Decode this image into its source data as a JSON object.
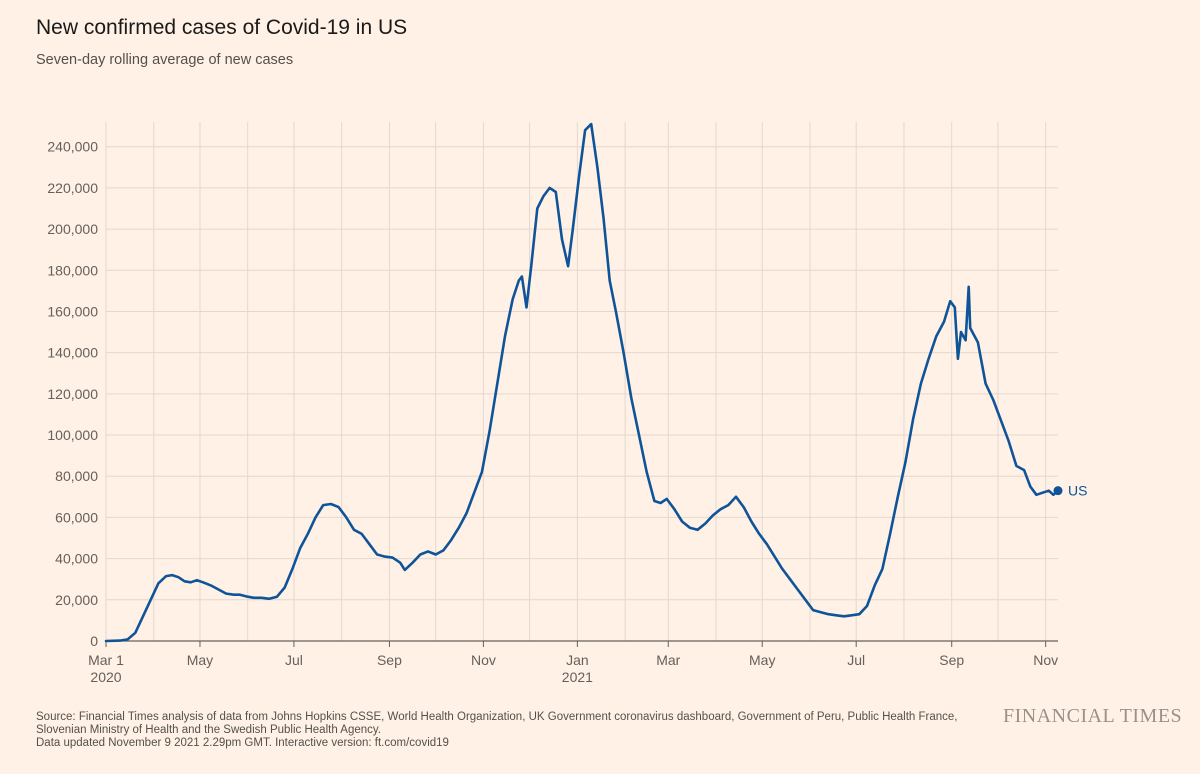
{
  "header": {
    "title": "New confirmed cases of Covid-19 in US",
    "subtitle": "Seven-day rolling average of new cases"
  },
  "footer": {
    "source": "Source: Financial Times analysis of data from Johns Hopkins CSSE, World Health Organization, UK Government coronavirus dashboard, Government of Peru, Public Health France, Slovenian Ministry of Health and the Swedish Public Health Agency.",
    "updated": "Data updated November 9 2021 2.29pm GMT. Interactive version: ft.com/covid19",
    "brand": "FINANCIAL TIMES"
  },
  "colors": {
    "background": "#fff1e5",
    "line": "#0f5499",
    "grid": "#e3d8cf",
    "axis": "#66605c"
  },
  "chart_data": {
    "type": "line",
    "title": "New confirmed cases of Covid-19 in US",
    "subtitle": "Seven-day rolling average of new cases",
    "xlabel": "",
    "ylabel": "",
    "x_range": [
      "2020-03-01",
      "2021-11-09"
    ],
    "ylim": [
      0,
      252000
    ],
    "y_ticks": [
      0,
      20000,
      40000,
      60000,
      80000,
      100000,
      120000,
      140000,
      160000,
      180000,
      200000,
      220000,
      240000
    ],
    "y_tick_labels": [
      "0",
      "20,000",
      "40,000",
      "60,000",
      "80,000",
      "100,000",
      "120,000",
      "140,000",
      "160,000",
      "180,000",
      "200,000",
      "220,000",
      "240,000"
    ],
    "x_ticks": [
      {
        "date": "2020-03-01",
        "label": "Mar 1",
        "sublabel": "2020"
      },
      {
        "date": "2020-05-01",
        "label": "May",
        "sublabel": ""
      },
      {
        "date": "2020-07-01",
        "label": "Jul",
        "sublabel": ""
      },
      {
        "date": "2020-09-01",
        "label": "Sep",
        "sublabel": ""
      },
      {
        "date": "2020-11-01",
        "label": "Nov",
        "sublabel": ""
      },
      {
        "date": "2021-01-01",
        "label": "Jan",
        "sublabel": "2021"
      },
      {
        "date": "2021-03-01",
        "label": "Mar",
        "sublabel": ""
      },
      {
        "date": "2021-05-01",
        "label": "May",
        "sublabel": ""
      },
      {
        "date": "2021-07-01",
        "label": "Jul",
        "sublabel": ""
      },
      {
        "date": "2021-09-01",
        "label": "Sep",
        "sublabel": ""
      },
      {
        "date": "2021-11-01",
        "label": "Nov",
        "sublabel": ""
      }
    ],
    "x_gridlines": [
      "2020-03-01",
      "2020-04-01",
      "2020-05-01",
      "2020-06-01",
      "2020-07-01",
      "2020-08-01",
      "2020-09-01",
      "2020-10-01",
      "2020-11-01",
      "2020-12-01",
      "2021-01-01",
      "2021-02-01",
      "2021-03-01",
      "2021-04-01",
      "2021-05-01",
      "2021-06-01",
      "2021-07-01",
      "2021-08-01",
      "2021-09-01",
      "2021-10-01",
      "2021-11-01"
    ],
    "grid": true,
    "series": [
      {
        "name": "US",
        "end_marker": true,
        "points": [
          [
            "2020-03-01",
            0
          ],
          [
            "2020-03-10",
            200
          ],
          [
            "2020-03-15",
            800
          ],
          [
            "2020-03-20",
            4000
          ],
          [
            "2020-03-25",
            12000
          ],
          [
            "2020-03-30",
            20000
          ],
          [
            "2020-04-04",
            28000
          ],
          [
            "2020-04-09",
            31500
          ],
          [
            "2020-04-13",
            32000
          ],
          [
            "2020-04-17",
            31000
          ],
          [
            "2020-04-21",
            29000
          ],
          [
            "2020-04-25",
            28500
          ],
          [
            "2020-04-29",
            29500
          ],
          [
            "2020-05-03",
            28500
          ],
          [
            "2020-05-08",
            27000
          ],
          [
            "2020-05-13",
            25000
          ],
          [
            "2020-05-18",
            23000
          ],
          [
            "2020-05-23",
            22500
          ],
          [
            "2020-05-27",
            22500
          ],
          [
            "2020-06-01",
            21500
          ],
          [
            "2020-06-05",
            21000
          ],
          [
            "2020-06-10",
            21000
          ],
          [
            "2020-06-15",
            20500
          ],
          [
            "2020-06-20",
            21500
          ],
          [
            "2020-06-25",
            26000
          ],
          [
            "2020-06-30",
            35000
          ],
          [
            "2020-07-05",
            45000
          ],
          [
            "2020-07-10",
            52000
          ],
          [
            "2020-07-15",
            60000
          ],
          [
            "2020-07-20",
            66000
          ],
          [
            "2020-07-25",
            66500
          ],
          [
            "2020-07-30",
            65000
          ],
          [
            "2020-08-04",
            60000
          ],
          [
            "2020-08-09",
            54000
          ],
          [
            "2020-08-14",
            52000
          ],
          [
            "2020-08-19",
            47000
          ],
          [
            "2020-08-24",
            42000
          ],
          [
            "2020-08-29",
            41000
          ],
          [
            "2020-09-03",
            40500
          ],
          [
            "2020-09-08",
            38000
          ],
          [
            "2020-09-11",
            34500
          ],
          [
            "2020-09-16",
            38000
          ],
          [
            "2020-09-21",
            42000
          ],
          [
            "2020-09-26",
            43500
          ],
          [
            "2020-10-01",
            42000
          ],
          [
            "2020-10-06",
            44000
          ],
          [
            "2020-10-11",
            49000
          ],
          [
            "2020-10-16",
            55000
          ],
          [
            "2020-10-21",
            62000
          ],
          [
            "2020-10-26",
            72000
          ],
          [
            "2020-10-31",
            82000
          ],
          [
            "2020-11-05",
            102000
          ],
          [
            "2020-11-10",
            125000
          ],
          [
            "2020-11-15",
            148000
          ],
          [
            "2020-11-20",
            166000
          ],
          [
            "2020-11-24",
            175000
          ],
          [
            "2020-11-26",
            177000
          ],
          [
            "2020-11-29",
            162000
          ],
          [
            "2020-12-02",
            182000
          ],
          [
            "2020-12-06",
            210000
          ],
          [
            "2020-12-10",
            216000
          ],
          [
            "2020-12-14",
            220000
          ],
          [
            "2020-12-18",
            218000
          ],
          [
            "2020-12-22",
            195000
          ],
          [
            "2020-12-26",
            182000
          ],
          [
            "2020-12-29",
            200000
          ],
          [
            "2021-01-02",
            225000
          ],
          [
            "2021-01-06",
            248000
          ],
          [
            "2021-01-10",
            251000
          ],
          [
            "2021-01-14",
            230000
          ],
          [
            "2021-01-18",
            205000
          ],
          [
            "2021-01-22",
            175000
          ],
          [
            "2021-01-26",
            160000
          ],
          [
            "2021-01-31",
            140000
          ],
          [
            "2021-02-05",
            118000
          ],
          [
            "2021-02-10",
            100000
          ],
          [
            "2021-02-15",
            82000
          ],
          [
            "2021-02-20",
            68000
          ],
          [
            "2021-02-24",
            67000
          ],
          [
            "2021-02-28",
            69000
          ],
          [
            "2021-03-05",
            64000
          ],
          [
            "2021-03-10",
            58000
          ],
          [
            "2021-03-15",
            55000
          ],
          [
            "2021-03-20",
            54000
          ],
          [
            "2021-03-25",
            57000
          ],
          [
            "2021-03-30",
            61000
          ],
          [
            "2021-04-04",
            64000
          ],
          [
            "2021-04-09",
            66000
          ],
          [
            "2021-04-14",
            70000
          ],
          [
            "2021-04-19",
            65000
          ],
          [
            "2021-04-24",
            58000
          ],
          [
            "2021-04-29",
            52000
          ],
          [
            "2021-05-04",
            47000
          ],
          [
            "2021-05-09",
            41000
          ],
          [
            "2021-05-14",
            35000
          ],
          [
            "2021-05-19",
            30000
          ],
          [
            "2021-05-24",
            25000
          ],
          [
            "2021-05-29",
            20000
          ],
          [
            "2021-06-03",
            15000
          ],
          [
            "2021-06-08",
            14000
          ],
          [
            "2021-06-13",
            13000
          ],
          [
            "2021-06-18",
            12500
          ],
          [
            "2021-06-23",
            12000
          ],
          [
            "2021-06-28",
            12500
          ],
          [
            "2021-07-03",
            13000
          ],
          [
            "2021-07-08",
            17000
          ],
          [
            "2021-07-13",
            27000
          ],
          [
            "2021-07-18",
            35000
          ],
          [
            "2021-07-23",
            52000
          ],
          [
            "2021-07-28",
            70000
          ],
          [
            "2021-08-02",
            87000
          ],
          [
            "2021-08-07",
            108000
          ],
          [
            "2021-08-12",
            125000
          ],
          [
            "2021-08-17",
            137000
          ],
          [
            "2021-08-22",
            148000
          ],
          [
            "2021-08-27",
            155000
          ],
          [
            "2021-08-31",
            165000
          ],
          [
            "2021-09-03",
            162000
          ],
          [
            "2021-09-05",
            137000
          ],
          [
            "2021-09-07",
            150000
          ],
          [
            "2021-09-10",
            146000
          ],
          [
            "2021-09-12",
            172000
          ],
          [
            "2021-09-13",
            152000
          ],
          [
            "2021-09-18",
            145000
          ],
          [
            "2021-09-23",
            125000
          ],
          [
            "2021-09-28",
            117000
          ],
          [
            "2021-10-03",
            107000
          ],
          [
            "2021-10-08",
            97000
          ],
          [
            "2021-10-13",
            85000
          ],
          [
            "2021-10-18",
            83000
          ],
          [
            "2021-10-22",
            75000
          ],
          [
            "2021-10-26",
            71000
          ],
          [
            "2021-10-30",
            72000
          ],
          [
            "2021-11-03",
            73000
          ],
          [
            "2021-11-06",
            71000
          ],
          [
            "2021-11-09",
            73000
          ]
        ]
      }
    ]
  }
}
